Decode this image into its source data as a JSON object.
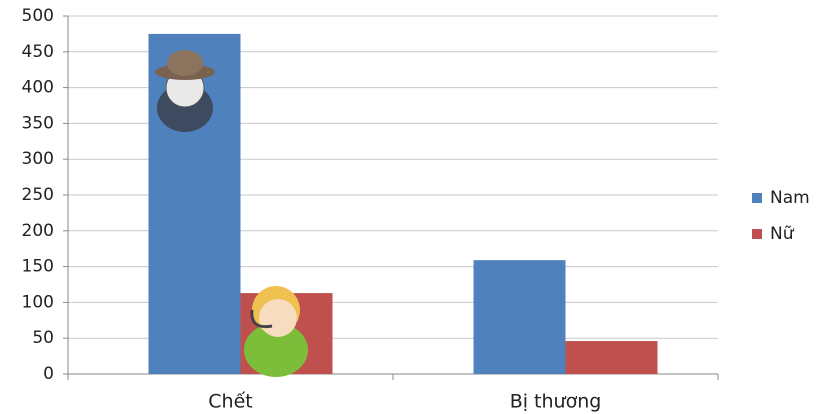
{
  "chart_data": {
    "type": "bar",
    "categories": [
      "Chết",
      "Bị thương"
    ],
    "series": [
      {
        "name": "Nam",
        "color": "#4f81bd",
        "values": [
          475,
          159
        ]
      },
      {
        "name": "Nữ",
        "color": "#c0504d",
        "values": [
          113,
          46
        ]
      }
    ],
    "ylim": [
      0,
      500
    ],
    "yticks": [
      0,
      50,
      100,
      150,
      200,
      250,
      300,
      350,
      400,
      450,
      500
    ],
    "grid": true,
    "legend": "right"
  }
}
